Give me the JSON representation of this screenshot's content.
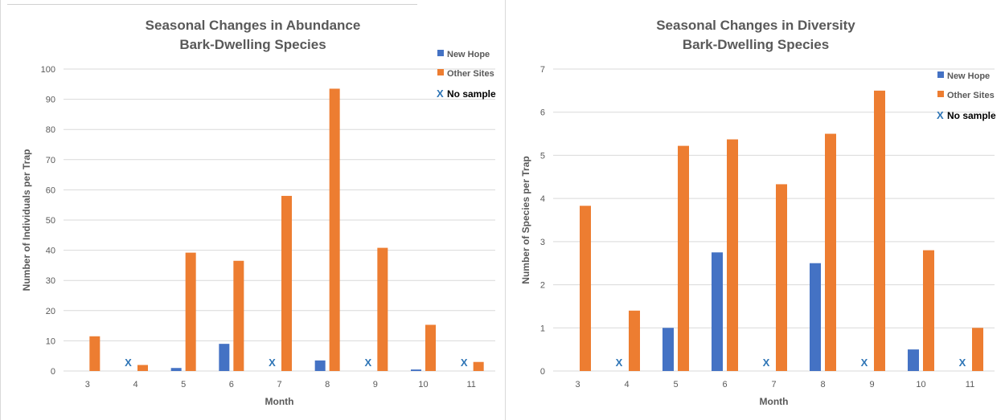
{
  "colors": {
    "new_hope": "#4472C4",
    "other_sites": "#ED7D31",
    "no_sample": "#2E75B6",
    "grid": "#d9d9d9",
    "text": "#595959"
  },
  "chart_data": [
    {
      "type": "bar",
      "title": "Seasonal Changes in Abundance",
      "subtitle": "Bark-Dwelling Species",
      "xlabel": "Month",
      "ylabel": "Number of Individuals per Trap",
      "ylim": [
        0,
        100
      ],
      "yticks": [
        "0",
        "10",
        "20",
        "30",
        "40",
        "50",
        "60",
        "70",
        "80",
        "90",
        "100"
      ],
      "categories": [
        "3",
        "4",
        "5",
        "6",
        "7",
        "8",
        "9",
        "10",
        "11"
      ],
      "series": [
        {
          "name": "New Hope",
          "values": [
            null,
            null,
            1,
            9,
            null,
            3.5,
            null,
            0.5,
            null
          ]
        },
        {
          "name": "Other Sites",
          "values": [
            11.5,
            2,
            39.2,
            36.5,
            58,
            93.5,
            40.8,
            15.3,
            3
          ]
        }
      ],
      "no_sample_marker": "X",
      "no_sample_label": "No sample",
      "no_sample_categories": [
        "4",
        "7",
        "9",
        "11"
      ],
      "legend": "right"
    },
    {
      "type": "bar",
      "title": "Seasonal Changes in Diversity",
      "subtitle": "Bark-Dwelling Species",
      "xlabel": "Month",
      "ylabel": "Number of Species per Trap",
      "ylim": [
        0,
        7
      ],
      "yticks": [
        "0",
        "1",
        "2",
        "3",
        "4",
        "5",
        "6",
        "7"
      ],
      "categories": [
        "3",
        "4",
        "5",
        "6",
        "7",
        "8",
        "9",
        "10",
        "11"
      ],
      "series": [
        {
          "name": "New Hope",
          "values": [
            null,
            null,
            1,
            2.75,
            null,
            2.5,
            null,
            0.5,
            null
          ]
        },
        {
          "name": "Other Sites",
          "values": [
            3.83,
            1.4,
            5.22,
            5.37,
            4.33,
            5.5,
            6.5,
            2.8,
            1
          ]
        }
      ],
      "no_sample_marker": "X",
      "no_sample_label": "No sample",
      "no_sample_categories": [
        "4",
        "7",
        "9",
        "11"
      ],
      "legend": "right"
    }
  ]
}
